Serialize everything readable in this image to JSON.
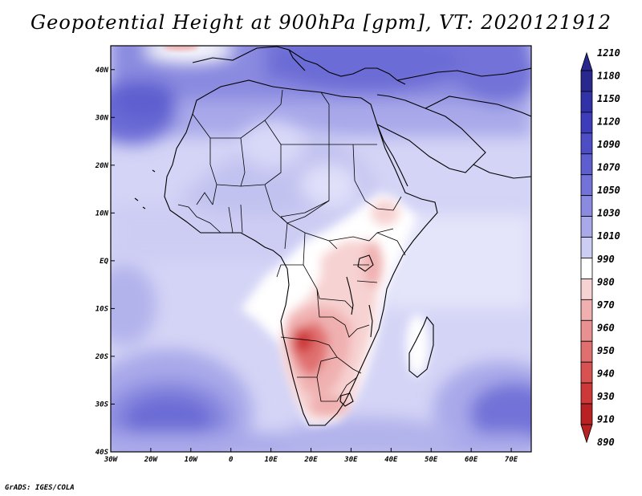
{
  "title": "Geopotential Height at 900hPa [gpm], VT: 2020121912",
  "footer": "GrADS: IGES/COLA",
  "map": {
    "lon_range": [
      -30,
      75
    ],
    "lat_range": [
      -40,
      45
    ],
    "lon_labels": [
      "30W",
      "20W",
      "10W",
      "0",
      "10E",
      "20E",
      "30E",
      "40E",
      "50E",
      "60E",
      "70E"
    ],
    "lat_labels": [
      "40N",
      "30N",
      "20N",
      "10N",
      "EQ",
      "10S",
      "20S",
      "30S",
      "40S"
    ]
  },
  "colorbar": {
    "levels": [
      "1210",
      "1180",
      "1150",
      "1120",
      "1090",
      "1070",
      "1050",
      "1030",
      "1010",
      "990",
      "980",
      "970",
      "960",
      "950",
      "940",
      "930",
      "910",
      "890"
    ],
    "colors": [
      "#28288e",
      "#3131a8",
      "#3d3dbb",
      "#4d4dc6",
      "#5e5ed0",
      "#7272d8",
      "#8a8ae0",
      "#a9a9ea",
      "#cdcdf4",
      "#ffffff",
      "#f7d2d2",
      "#f0b0b0",
      "#e99090",
      "#e07070",
      "#d85252",
      "#cd3838",
      "#b82222"
    ]
  },
  "colors": {
    "ocean_base": "#d2d2f6",
    "low_high": "#6c6cd6",
    "mid_purple": "#9b9be6",
    "land_white": "#ffffff",
    "thermal_low": "#d95454"
  }
}
